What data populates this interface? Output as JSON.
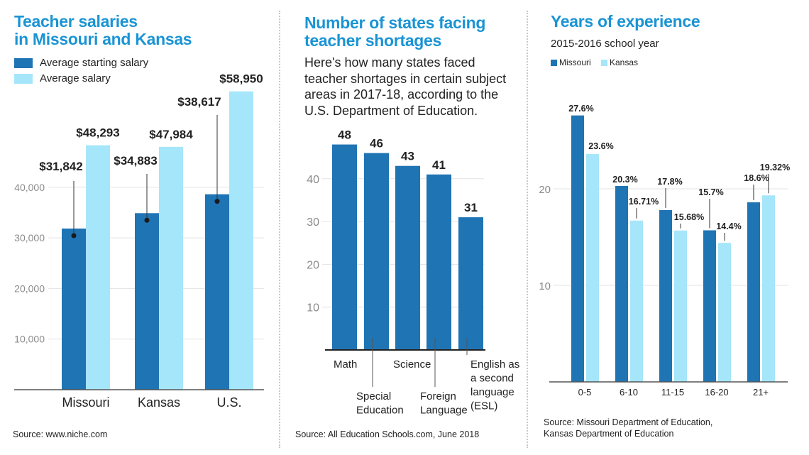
{
  "colors": {
    "title": "#1a94d4",
    "dark_bar": "#1f74b4",
    "light_bar": "#a6e6fa",
    "grid": "#e3e3e3",
    "axis": "#555555",
    "text": "#222222",
    "tick": "#8a8a8a"
  },
  "panel1": {
    "title_line1": "Teacher salaries",
    "title_line2": "in Missouri and Kansas",
    "legend": [
      {
        "label": "Average starting salary",
        "color": "#1f74b4"
      },
      {
        "label": "Average salary",
        "color": "#a6e6fa"
      }
    ],
    "source": "Source: www.niche.com"
  },
  "panel2": {
    "title_line1": "Number of states facing",
    "title_line2": "teacher shortages",
    "description": [
      "Here's how many states faced",
      "teacher shortages in certain subject",
      "areas in 2017-18, according to the",
      "U.S. Department of Education."
    ],
    "source": "Source: All Education Schools.com, June 2018"
  },
  "panel3": {
    "title": "Years of experience",
    "subtitle": "2015-2016 school year",
    "legend": [
      {
        "label": "Missouri",
        "color": "#1f74b4"
      },
      {
        "label": "Kansas",
        "color": "#a6e6fa"
      }
    ],
    "source_line1": "Source: Missouri Department of Education,",
    "source_line2": "Kansas Department of Education"
  },
  "chart_data": [
    {
      "type": "bar",
      "title": "Teacher salaries in Missouri and Kansas",
      "categories": [
        "Missouri",
        "Kansas",
        "U.S."
      ],
      "series": [
        {
          "name": "Average starting salary",
          "values": [
            31842,
            34883,
            38617
          ],
          "labels": [
            "$31,842",
            "$34,883",
            "$38,617"
          ]
        },
        {
          "name": "Average salary",
          "values": [
            48293,
            47984,
            58950
          ],
          "labels": [
            "$48,293",
            "$47,984",
            "$58,950"
          ]
        }
      ],
      "yticks": [
        10000,
        20000,
        30000,
        40000
      ],
      "ytick_labels": [
        "10,000",
        "20,000",
        "30,000",
        "40,000"
      ],
      "ylim": [
        0,
        60000
      ],
      "xlabel": "",
      "ylabel": "",
      "grid": true,
      "legend": "top-left"
    },
    {
      "type": "bar",
      "title": "Number of states facing teacher shortages",
      "categories": [
        "Math",
        "Special Education",
        "Science",
        "Foreign Language",
        "English as a second language (ESL)"
      ],
      "category_label_lines": [
        [
          "Math"
        ],
        [
          "Special",
          "Education"
        ],
        [
          "Science"
        ],
        [
          "Foreign",
          "Language"
        ],
        [
          "English as",
          "a second",
          "language",
          "(ESL)"
        ]
      ],
      "values": [
        48,
        46,
        43,
        41,
        31
      ],
      "yticks": [
        10,
        20,
        30,
        40
      ],
      "ylim": [
        0,
        50
      ],
      "xlabel": "",
      "ylabel": "",
      "grid": true
    },
    {
      "type": "bar",
      "title": "Years of experience",
      "subtitle": "2015-2016 school year",
      "categories": [
        "0-5",
        "6-10",
        "11-15",
        "16-20",
        "21+"
      ],
      "series": [
        {
          "name": "Missouri",
          "values": [
            27.6,
            20.3,
            17.8,
            15.7,
            18.6
          ],
          "labels": [
            "27.6%",
            "20.3%",
            "17.8%",
            "15.7%",
            "18.6%"
          ]
        },
        {
          "name": "Kansas",
          "values": [
            23.6,
            16.71,
            15.68,
            14.4,
            19.32
          ],
          "labels": [
            "23.6%",
            "16.71%",
            "15.68%",
            "14.4%",
            "19.32%"
          ]
        }
      ],
      "yticks": [
        10,
        20
      ],
      "ylim": [
        0,
        29
      ],
      "xlabel": "",
      "ylabel": "",
      "grid": true,
      "legend": "top-left"
    }
  ]
}
